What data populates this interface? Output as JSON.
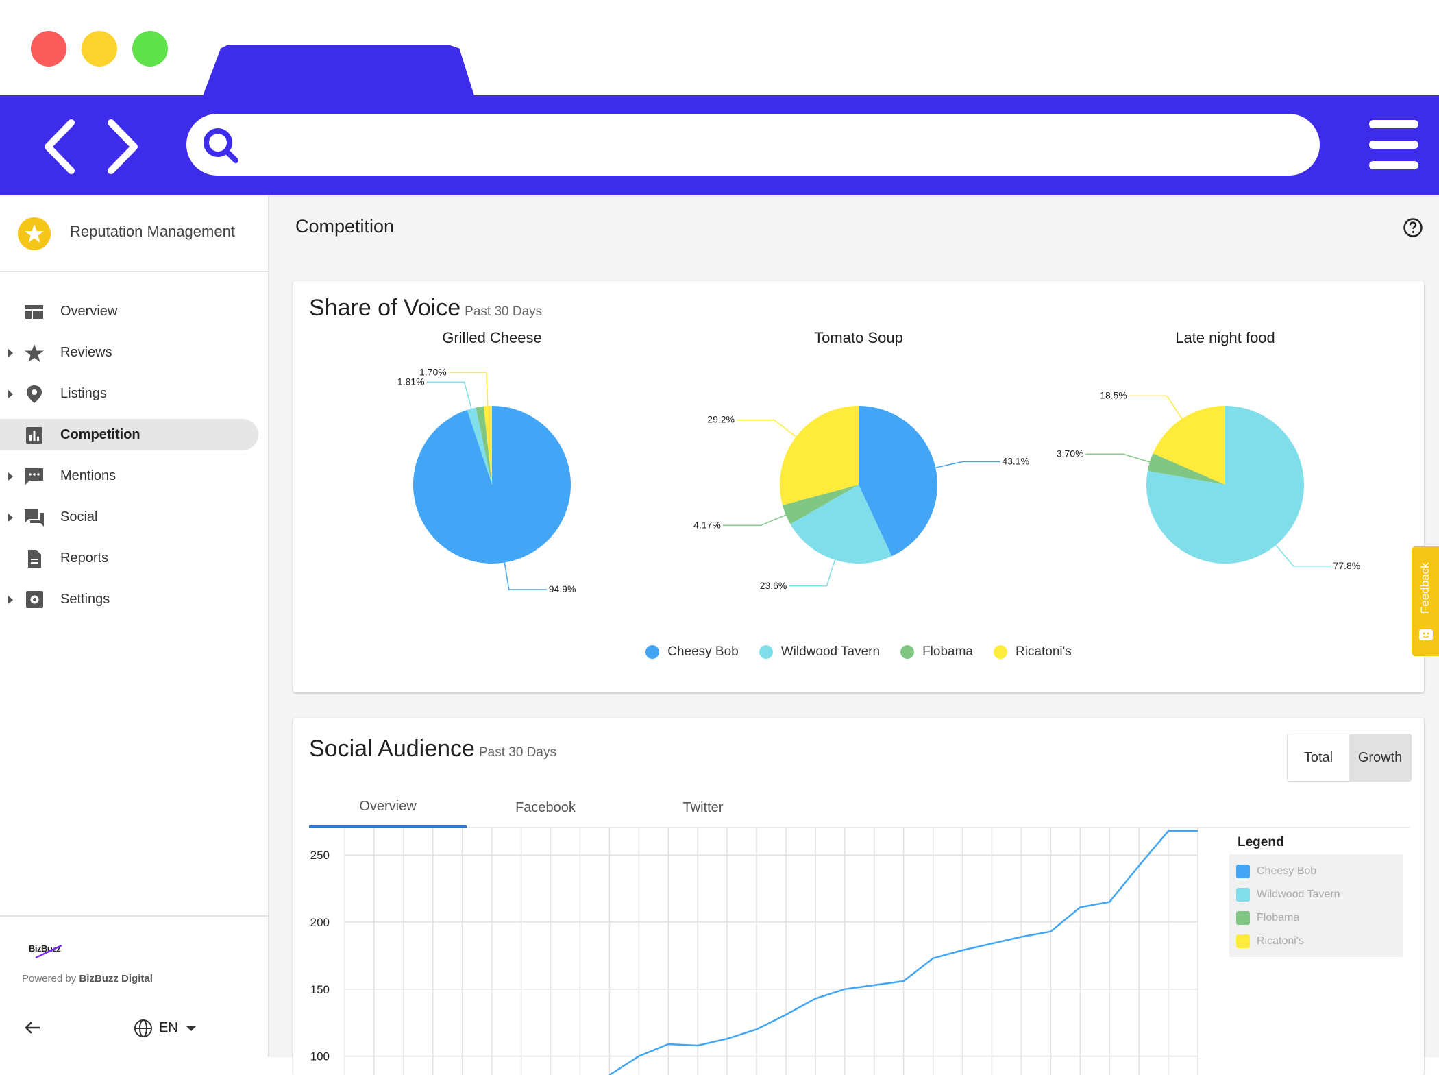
{
  "sidebar": {
    "brand_title": "Reputation Management",
    "items": [
      {
        "label": "Overview",
        "icon": "overview-icon",
        "expandable": false,
        "active": false
      },
      {
        "label": "Reviews",
        "icon": "star-icon",
        "expandable": true,
        "active": false
      },
      {
        "label": "Listings",
        "icon": "location-pin-icon",
        "expandable": true,
        "active": false
      },
      {
        "label": "Competition",
        "icon": "bar-chart-icon",
        "expandable": false,
        "active": true
      },
      {
        "label": "Mentions",
        "icon": "chat-bubble-icon",
        "expandable": true,
        "active": false
      },
      {
        "label": "Social",
        "icon": "forum-icon",
        "expandable": true,
        "active": false
      },
      {
        "label": "Reports",
        "icon": "document-icon",
        "expandable": false,
        "active": false
      },
      {
        "label": "Settings",
        "icon": "gear-icon",
        "expandable": true,
        "active": false
      }
    ],
    "footer": {
      "logo_text": "BizBuzz",
      "powered_prefix": "Powered by ",
      "powered_brand": "BizBuzz Digital",
      "language": "EN"
    }
  },
  "page": {
    "title": "Competition"
  },
  "share_of_voice": {
    "title": "Share of Voice",
    "period": "Past 30 Days",
    "legend": [
      {
        "name": "Cheesy Bob",
        "color": "#42a5f5"
      },
      {
        "name": "Wildwood Tavern",
        "color": "#80deea"
      },
      {
        "name": "Flobama",
        "color": "#81c784"
      },
      {
        "name": "Ricatoni's",
        "color": "#ffeb3b"
      }
    ]
  },
  "social_audience": {
    "title": "Social Audience",
    "period": "Past 30 Days",
    "toggle": {
      "total": "Total",
      "growth": "Growth",
      "selected": "Growth"
    },
    "tabs": [
      "Overview",
      "Facebook",
      "Twitter"
    ],
    "active_tab": "Overview",
    "legend_title": "Legend",
    "legend": [
      {
        "name": "Cheesy Bob",
        "color": "#42a5f5"
      },
      {
        "name": "Wildwood Tavern",
        "color": "#80deea"
      },
      {
        "name": "Flobama",
        "color": "#81c784"
      },
      {
        "name": "Ricatoni's",
        "color": "#ffeb3b"
      }
    ]
  },
  "feedback_label": "Feedback",
  "chart_data": [
    {
      "type": "pie",
      "title": "Grilled Cheese",
      "slices": [
        {
          "name": "Cheesy Bob",
          "value": 94.9,
          "label": "94.9%",
          "color": "#42a5f5"
        },
        {
          "name": "Wildwood Tavern",
          "value": 1.81,
          "label": "1.81%",
          "color": "#80deea"
        },
        {
          "name": "Flobama",
          "value": 1.59,
          "label": "",
          "color": "#81c784"
        },
        {
          "name": "Ricatoni's",
          "value": 1.7,
          "label": "1.70%",
          "color": "#ffeb3b"
        }
      ]
    },
    {
      "type": "pie",
      "title": "Tomato Soup",
      "slices": [
        {
          "name": "Cheesy Bob",
          "value": 43.1,
          "label": "43.1%",
          "color": "#42a5f5"
        },
        {
          "name": "Wildwood Tavern",
          "value": 23.6,
          "label": "23.6%",
          "color": "#80deea"
        },
        {
          "name": "Flobama",
          "value": 4.17,
          "label": "4.17%",
          "color": "#81c784"
        },
        {
          "name": "Ricatoni's",
          "value": 29.2,
          "label": "29.2%",
          "color": "#ffeb3b"
        }
      ]
    },
    {
      "type": "pie",
      "title": "Late night food",
      "slices": [
        {
          "name": "Cheesy Bob",
          "value": 0,
          "label": "",
          "color": "#42a5f5"
        },
        {
          "name": "Wildwood Tavern",
          "value": 77.8,
          "label": "77.8%",
          "color": "#80deea"
        },
        {
          "name": "Flobama",
          "value": 3.7,
          "label": "3.70%",
          "color": "#81c784"
        },
        {
          "name": "Ricatoni's",
          "value": 18.5,
          "label": "18.5%",
          "color": "#ffeb3b"
        }
      ]
    },
    {
      "type": "line",
      "title": "",
      "ylim": [
        86,
        270
      ],
      "yticks": [
        100,
        150,
        200,
        250
      ],
      "x": [
        0,
        1,
        2,
        3,
        4,
        5,
        6,
        7,
        8,
        9,
        10,
        11,
        12,
        13,
        14,
        15,
        16,
        17,
        18,
        19,
        20,
        21,
        22,
        23,
        24,
        25,
        26,
        27,
        28,
        29
      ],
      "series": [
        {
          "name": "Cheesy Bob",
          "color": "#42a5f5",
          "values": [
            null,
            null,
            null,
            null,
            null,
            null,
            null,
            null,
            null,
            86,
            100,
            109,
            108,
            113,
            120,
            131,
            143,
            150,
            153,
            156,
            173,
            179,
            184,
            189,
            193,
            211,
            215,
            242,
            268,
            268
          ]
        }
      ]
    }
  ]
}
